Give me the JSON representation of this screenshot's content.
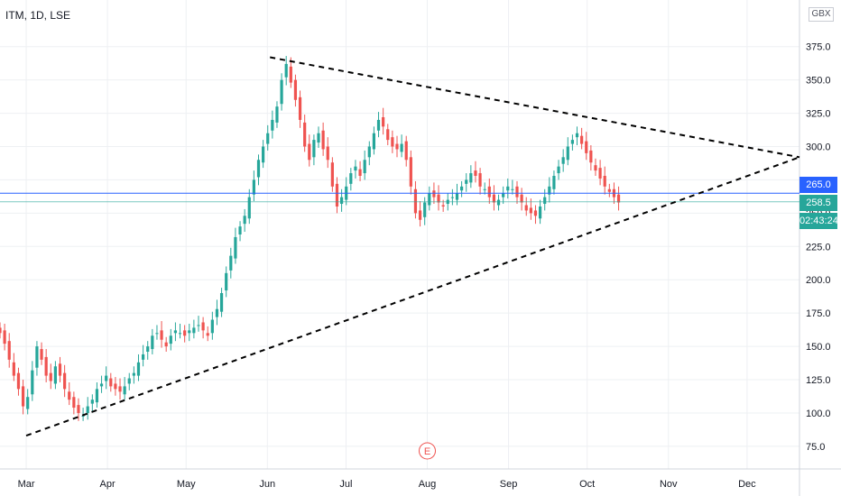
{
  "header": {
    "symbol": "ITM, 1D, LSE",
    "currency": "GBX"
  },
  "price_tags": {
    "blue_level": "265.0",
    "last_price": "258.5",
    "countdown": "02:43:24"
  },
  "earnings_marker": "E",
  "colors": {
    "up": "#26a69a",
    "down": "#ef5350",
    "blue_line": "#2962ff",
    "grid": "#eef0f3",
    "trendline": "#000000",
    "axis_text": "#131722",
    "earnings": "#ef5350"
  },
  "chart_data": {
    "type": "candlestick",
    "title": "",
    "xlabel": "",
    "ylabel": "",
    "ylim": [
      58,
      410
    ],
    "y_ticks": [
      75.0,
      100.0,
      125.0,
      150.0,
      175.0,
      200.0,
      225.0,
      250.0,
      275.0,
      300.0,
      325.0,
      350.0,
      375.0
    ],
    "y_tick_labels": [
      "75.0",
      "100.0",
      "125.0",
      "150.0",
      "175.0",
      "200.0",
      "225.0",
      "250.0",
      "275.0",
      "300.0",
      "325.0",
      "350.0",
      "375.0"
    ],
    "x_ticks": [
      "Mar",
      "Apr",
      "May",
      "Jun",
      "Jul",
      "Aug",
      "Sep",
      "Oct",
      "Nov",
      "Dec"
    ],
    "x_tick_days": [
      10,
      41,
      71,
      102,
      132,
      163,
      194,
      224,
      255,
      285
    ],
    "x_range_days": [
      0,
      305
    ],
    "series_close": [
      160,
      152,
      140,
      128,
      118,
      105,
      112,
      132,
      150,
      140,
      128,
      124,
      135,
      128,
      118,
      110,
      104,
      100,
      98,
      105,
      110,
      118,
      122,
      128,
      120,
      118,
      116,
      120,
      126,
      130,
      138,
      144,
      150,
      158,
      160,
      155,
      150,
      158,
      162,
      160,
      158,
      162,
      164,
      166,
      162,
      158,
      170,
      178,
      190,
      205,
      218,
      232,
      240,
      248,
      262,
      275,
      290,
      300,
      310,
      320,
      330,
      350,
      362,
      348,
      335,
      320,
      300,
      290,
      305,
      310,
      298,
      290,
      270,
      255,
      262,
      270,
      280,
      285,
      278,
      290,
      300,
      310,
      320,
      315,
      305,
      300,
      298,
      302,
      290,
      270,
      250,
      245,
      258,
      265,
      262,
      258,
      255,
      260,
      262,
      265,
      270,
      275,
      280,
      278,
      270,
      268,
      262,
      258,
      260,
      265,
      270,
      268,
      262,
      258,
      252,
      250,
      248,
      255,
      262,
      270,
      278,
      285,
      292,
      300,
      305,
      310,
      302,
      295,
      288,
      282,
      276,
      270,
      266,
      262,
      258
    ],
    "candles_visible": 170,
    "earnings_day": 163,
    "horizontal_lines": [
      {
        "label": "265.0",
        "value": 265.0,
        "color": "#2962ff"
      },
      {
        "label": "258.5",
        "value": 258.5,
        "color": "#26a69a"
      }
    ],
    "trendlines": [
      {
        "name": "upper",
        "from": [
          103,
          367
        ],
        "to": [
          305,
          292
        ]
      },
      {
        "name": "lower",
        "from": [
          10,
          83
        ],
        "to": [
          305,
          292
        ]
      }
    ]
  }
}
